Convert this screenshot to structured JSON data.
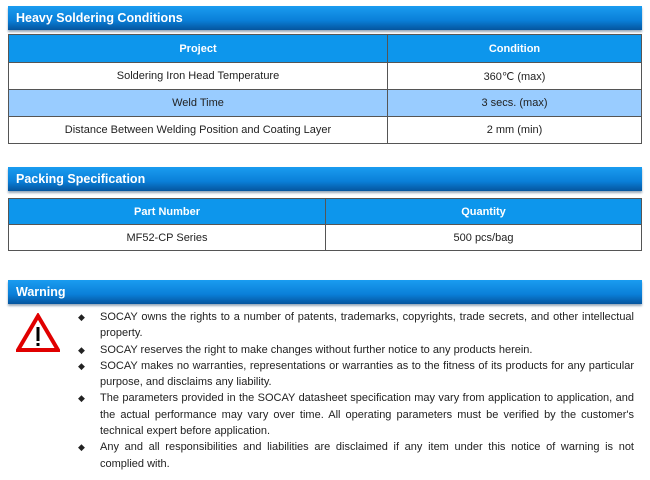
{
  "soldering": {
    "title": "Heavy Soldering Conditions",
    "headers": [
      "Project",
      "Condition"
    ],
    "rows": [
      [
        "Soldering Iron Head Temperature",
        "360℃ (max)"
      ],
      [
        "Weld Time",
        "3 secs. (max)"
      ],
      [
        "Distance Between Welding Position and Coating Layer",
        "2 mm (min)"
      ]
    ]
  },
  "packing": {
    "title": "Packing Specification",
    "headers": [
      "Part Number",
      "Quantity"
    ],
    "rows": [
      [
        "MF52-CP Series",
        "500 pcs/bag"
      ]
    ]
  },
  "warning": {
    "title": "Warning",
    "icon": "warning-triangle-icon",
    "bullet": "◆",
    "items": [
      "SOCAY owns the rights to a number of patents, trademarks, copyrights, trade secrets, and other intellectual property.",
      "SOCAY reserves the right to make changes without further notice to any products herein.",
      "SOCAY makes no warranties, representations or warranties as to the fitness of its products for any particular purpose, and disclaims any liability.",
      "The parameters provided in the SOCAY datasheet specification may vary from application to application, and the actual performance may vary over time. All operating parameters must be verified by the customer's technical expert before application.",
      "Any and all responsibilities and liabilities are disclaimed if any item under this notice of warning is not complied with."
    ]
  },
  "colors": {
    "header_bar": "#0a7fd8",
    "table_header": "#0d96ec",
    "alt_row": "#99ccff",
    "warning_red": "#e00000"
  }
}
